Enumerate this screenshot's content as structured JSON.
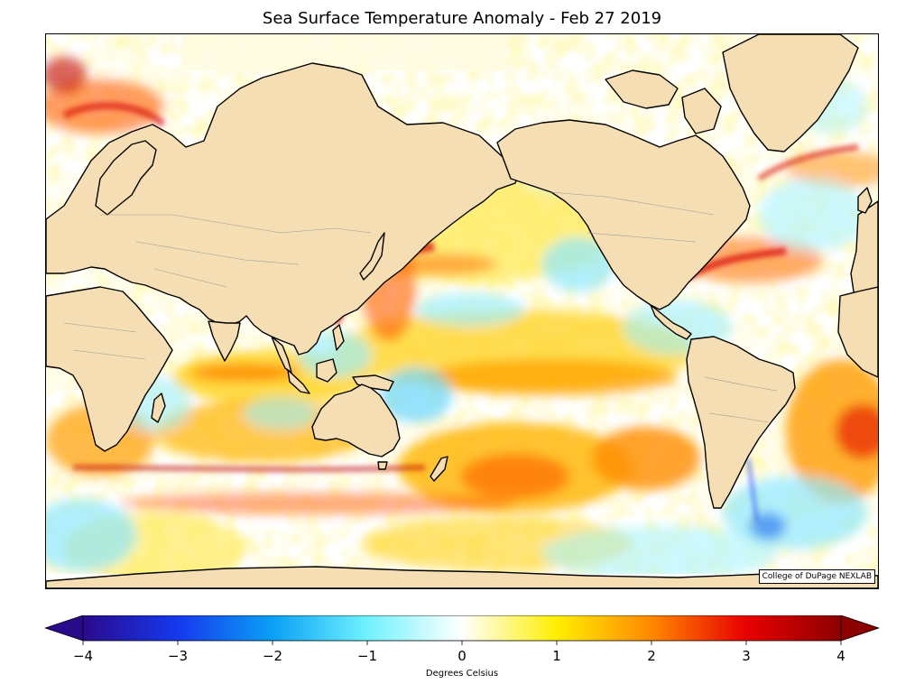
{
  "title": "Sea Surface Temperature Anomaly - Feb 27 2019",
  "credit": "College of DuPage NEXLAB",
  "colorbar": {
    "label": "Degrees Celsius",
    "ticks": [
      "−4",
      "−3",
      "−2",
      "−1",
      "0",
      "1",
      "2",
      "3",
      "4"
    ],
    "range": [
      -4,
      4
    ],
    "extend": "both",
    "colors": {
      "minus4": "#2a0a8c",
      "minus3": "#1638ee",
      "minus2": "#0aa0f5",
      "minus1": "#70f2ff",
      "zero": "#ffffff",
      "plus1": "#ffef00",
      "plus2": "#ff8800",
      "plus3": "#e80000",
      "plus4": "#8c0000"
    }
  },
  "map": {
    "land_color": "#f5deb3",
    "coast_color": "#000000",
    "border_color": "#999999"
  }
}
